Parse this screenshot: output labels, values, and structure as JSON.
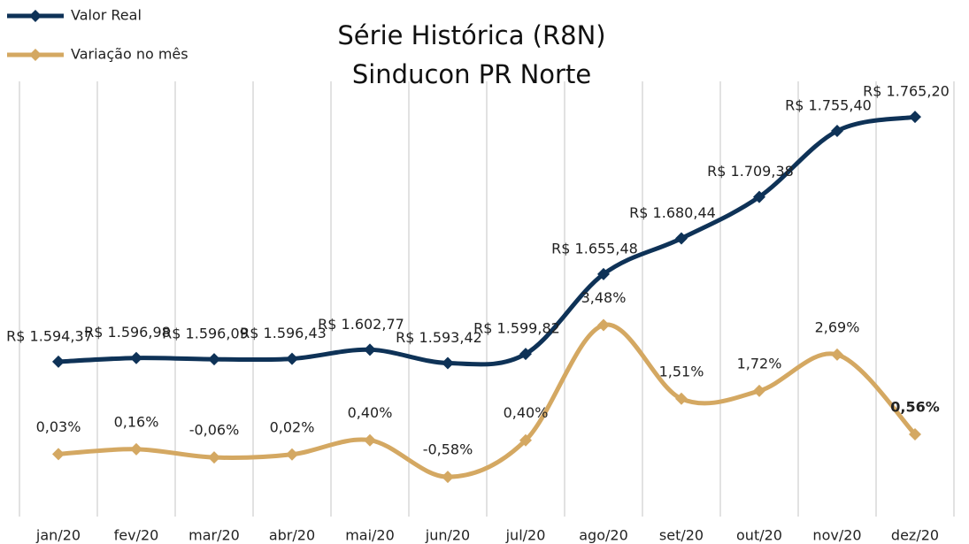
{
  "chart_data": {
    "type": "line",
    "title": [
      "Série Histórica (R8N)",
      "Sinducon PR Norte"
    ],
    "categories": [
      "jan/20",
      "fev/20",
      "mar/20",
      "abr/20",
      "mai/20",
      "jun/20",
      "jul/20",
      "ago/20",
      "set/20",
      "out/20",
      "nov/20",
      "dez/20"
    ],
    "series": [
      {
        "name": "Valor Real",
        "color": "#0e3257",
        "values": [
          1594.37,
          1596.98,
          1596.09,
          1596.43,
          1602.77,
          1593.42,
          1599.82,
          1655.48,
          1680.44,
          1709.38,
          1755.4,
          1765.2
        ],
        "value_labels": [
          "R$ 1.594,37",
          "R$ 1.596,98",
          "R$ 1.596,09",
          "R$ 1.596,43",
          "R$ 1.602,77",
          "R$ 1.593,42",
          "R$ 1.599,82",
          "R$ 1.655,48",
          "R$ 1.680,44",
          "R$ 1.709,38",
          "R$ 1.755,40",
          "R$ 1.765,20"
        ]
      },
      {
        "name": "Variação no mês",
        "color": "#d4a862",
        "axis": "y2",
        "values": [
          0.03,
          0.16,
          -0.06,
          0.02,
          0.4,
          -0.58,
          0.4,
          3.48,
          1.51,
          1.72,
          2.69,
          0.56
        ],
        "value_labels": [
          "0,03%",
          "0,16%",
          "-0,06%",
          "0,02%",
          "0,40%",
          "-0,58%",
          "0,40%",
          "3,48%",
          "1,51%",
          "1,72%",
          "2,69%",
          "0,56%"
        ]
      }
    ],
    "ylim": [
      1490,
      1790
    ],
    "y2lim": [
      -1.5,
      10
    ],
    "legend": "top-left"
  }
}
